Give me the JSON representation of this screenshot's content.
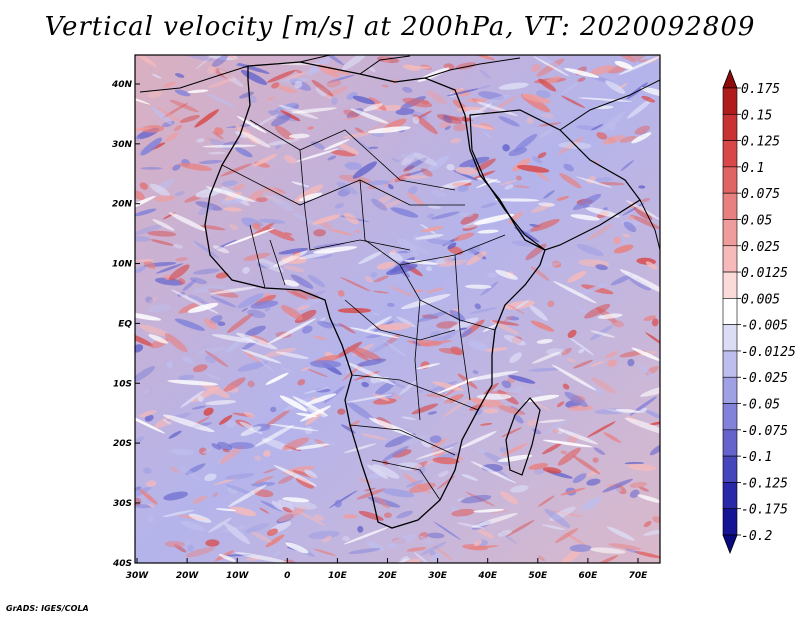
{
  "title": "Vertical velocity [m/s] at 200hPa, VT: 2020092809",
  "credit": "GrADS: IGES/COLA",
  "lat_ticks": [
    "40N",
    "30N",
    "20N",
    "10N",
    "EQ",
    "10S",
    "20S",
    "30S",
    "40S"
  ],
  "lon_ticks": [
    "30W",
    "20W",
    "10W",
    "0",
    "10E",
    "20E",
    "30E",
    "40E",
    "50E",
    "60E",
    "70E"
  ],
  "colorbar": {
    "labels": [
      "0.175",
      "0.15",
      "0.125",
      "0.1",
      "0.075",
      "0.05",
      "0.025",
      "0.0125",
      "0.005",
      "-0.005",
      "-0.0125",
      "-0.025",
      "-0.05",
      "-0.075",
      "-0.1",
      "-0.125",
      "-0.175",
      "-0.2"
    ],
    "colors": [
      "#8c0a0a",
      "#b01c1c",
      "#c83232",
      "#d84848",
      "#e06464",
      "#e88080",
      "#f09c9c",
      "#f6baba",
      "#fbdada",
      "#ffffff",
      "#dcdcf6",
      "#bebeee",
      "#a0a0e4",
      "#8282da",
      "#6464cc",
      "#4646bc",
      "#2828a8",
      "#141494",
      "#0a0a80"
    ]
  }
}
